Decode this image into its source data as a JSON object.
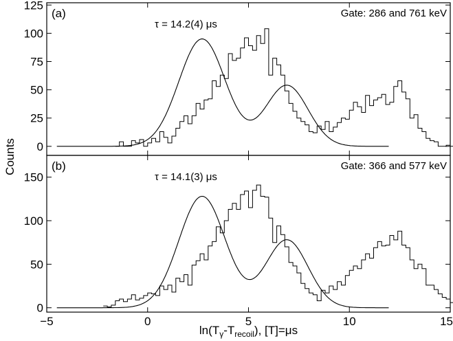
{
  "chart_data": {
    "type": "line",
    "shared_x_axis": {
      "label_parts": {
        "base": "ln(T",
        "sub1": "γ",
        "mid": "-T",
        "sub2": "recoil",
        "tail": "), [T]=μs"
      },
      "xlim": [
        -5,
        15
      ],
      "ticks": [
        -5,
        0,
        5,
        10,
        15
      ],
      "tick_labels": [
        "−5",
        "0",
        "5",
        "10",
        "15"
      ]
    },
    "shared_y_label": "Counts",
    "panels": [
      {
        "panel_label": "(a)",
        "gate_label": "Gate: 286 and 761 keV",
        "tau_label": "τ = 14.2(4) μs",
        "ylim": [
          -8,
          127
        ],
        "yticks": [
          0,
          25,
          50,
          75,
          100,
          125
        ],
        "ytick_labels": [
          "0",
          "25",
          "50",
          "75",
          "100",
          "125"
        ],
        "fit_components": [
          {
            "amplitude": 95,
            "mean": 2.7,
            "sigma": 1.15
          },
          {
            "amplitude": 54,
            "mean": 6.9,
            "sigma": 1.05
          }
        ],
        "histogram": {
          "bin_width": 0.2,
          "x_start": -1.6,
          "counts": [
            0,
            4,
            0,
            0,
            5,
            3,
            6,
            0,
            3,
            7,
            4,
            13,
            8,
            3,
            9,
            16,
            22,
            27,
            20,
            27,
            38,
            33,
            41,
            42,
            58,
            53,
            63,
            60,
            82,
            76,
            78,
            87,
            96,
            89,
            85,
            98,
            91,
            104,
            63,
            78,
            72,
            63,
            49,
            38,
            31,
            25,
            22,
            19,
            13,
            12,
            18,
            15,
            22,
            13,
            17,
            21,
            25,
            24,
            32,
            39,
            35,
            30,
            45,
            36,
            41,
            43,
            46,
            37,
            39,
            53,
            58,
            48,
            42,
            25,
            28,
            16,
            13,
            7,
            5,
            4,
            0,
            0,
            1,
            0,
            0,
            0,
            0,
            1,
            0,
            0,
            1,
            0,
            0,
            0,
            0,
            0,
            1
          ]
        }
      },
      {
        "panel_label": "(b)",
        "gate_label": "Gate: 366 and 577 keV",
        "tau_label": "τ = 14.1(3) μs",
        "ylim": [
          -5,
          175
        ],
        "yticks": [
          0,
          50,
          100,
          150
        ],
        "ytick_labels": [
          "0",
          "50",
          "100",
          "150"
        ],
        "fit_components": [
          {
            "amplitude": 128,
            "mean": 2.7,
            "sigma": 1.15
          },
          {
            "amplitude": 78,
            "mean": 6.9,
            "sigma": 1.05
          }
        ],
        "histogram": {
          "bin_width": 0.2,
          "x_start": -2.2,
          "counts": [
            2,
            1,
            3,
            8,
            10,
            7,
            10,
            15,
            9,
            11,
            14,
            17,
            16,
            14,
            25,
            21,
            26,
            18,
            34,
            30,
            38,
            26,
            49,
            54,
            62,
            55,
            71,
            76,
            93,
            86,
            100,
            113,
            120,
            113,
            130,
            134,
            115,
            135,
            141,
            128,
            127,
            103,
            75,
            94,
            84,
            70,
            52,
            48,
            40,
            28,
            22,
            17,
            15,
            8,
            20,
            17,
            25,
            21,
            30,
            26,
            37,
            43,
            48,
            45,
            55,
            62,
            57,
            69,
            76,
            71,
            72,
            83,
            78,
            88,
            72,
            69,
            55,
            45,
            50,
            45,
            26,
            26,
            21,
            16,
            12,
            10,
            6,
            5,
            3,
            1,
            2,
            0,
            1,
            0,
            2,
            0,
            0,
            1
          ]
        }
      }
    ]
  }
}
